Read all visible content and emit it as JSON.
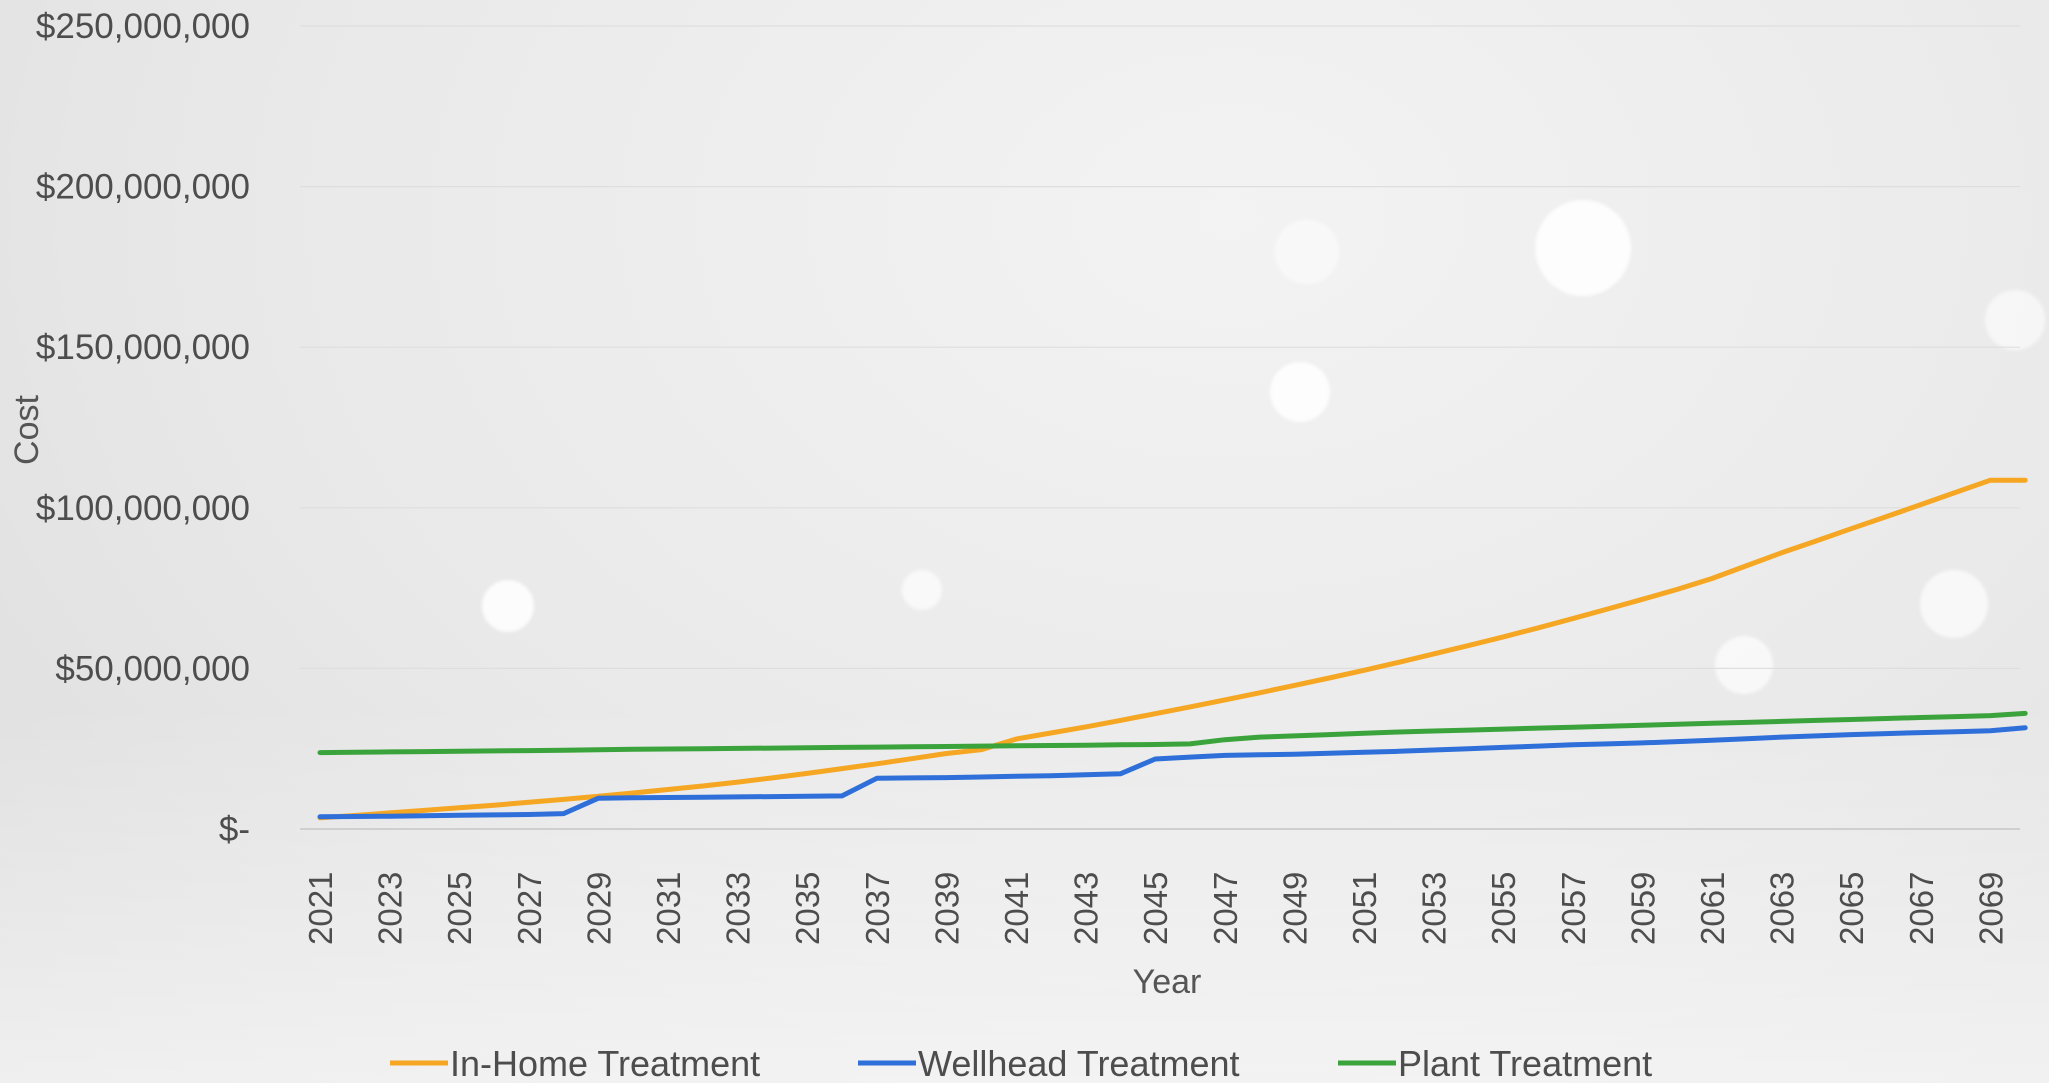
{
  "chart_data": {
    "type": "line",
    "title": "",
    "xlabel": "Year",
    "ylabel": "Cost",
    "ylim": [
      0,
      250000000
    ],
    "y_ticks": [
      0,
      50000000,
      100000000,
      150000000,
      200000000,
      250000000
    ],
    "y_tick_labels": [
      "$-",
      "$50,000,000",
      "$100,000,000",
      "$150,000,000",
      "$200,000,000",
      "$250,000,000"
    ],
    "x": [
      2021,
      2022,
      2023,
      2024,
      2025,
      2026,
      2027,
      2028,
      2029,
      2030,
      2031,
      2032,
      2033,
      2034,
      2035,
      2036,
      2037,
      2038,
      2039,
      2040,
      2041,
      2042,
      2043,
      2044,
      2045,
      2046,
      2047,
      2048,
      2049,
      2050,
      2051,
      2052,
      2053,
      2054,
      2055,
      2056,
      2057,
      2058,
      2059,
      2060,
      2061,
      2062,
      2063,
      2064,
      2065,
      2066,
      2067,
      2068,
      2069,
      2070
    ],
    "x_tick_labels": [
      "2021",
      "2023",
      "2025",
      "2027",
      "2029",
      "2031",
      "2033",
      "2035",
      "2037",
      "2039",
      "2041",
      "2043",
      "2045",
      "2047",
      "2049",
      "2051",
      "2053",
      "2055",
      "2057",
      "2059",
      "2061",
      "2063",
      "2065",
      "2067",
      "2069"
    ],
    "grid": true,
    "legend_position": "bottom",
    "series": [
      {
        "name": "In-Home Treatment",
        "color": "#F5A623",
        "values": [
          3500000,
          4200000,
          5000000,
          5800000,
          6600000,
          7400000,
          8300000,
          9200000,
          10200000,
          11200000,
          12300000,
          13400000,
          14600000,
          15900000,
          17300000,
          18800000,
          20300000,
          21900000,
          23500000,
          24700000,
          28000000,
          29900000,
          31800000,
          33800000,
          35900000,
          38000000,
          40200000,
          42400000,
          44700000,
          47000000,
          49400000,
          51900000,
          54500000,
          57100000,
          59800000,
          62600000,
          65500000,
          68500000,
          71500000,
          74600000,
          78000000,
          82000000,
          86000000,
          89700000,
          93500000,
          97200000,
          101000000,
          104800000,
          108600000,
          108600000
        ]
      },
      {
        "name": "Wellhead Treatment",
        "color": "#2E6FD9",
        "values": [
          3800000,
          3900000,
          4000000,
          4100000,
          4300000,
          4400000,
          4500000,
          4800000,
          9600000,
          9700000,
          9800000,
          9900000,
          10000000,
          10100000,
          10200000,
          10300000,
          15800000,
          15900000,
          16000000,
          16200000,
          16400000,
          16600000,
          16900000,
          17200000,
          21800000,
          22400000,
          22900000,
          23100000,
          23300000,
          23600000,
          23900000,
          24200000,
          24600000,
          25000000,
          25400000,
          25800000,
          26200000,
          26500000,
          26800000,
          27200000,
          27600000,
          28100000,
          28600000,
          29000000,
          29400000,
          29700000,
          30000000,
          30300000,
          30600000,
          31500000
        ]
      },
      {
        "name": "Plant Treatment",
        "color": "#3BA33B",
        "values": [
          23800000,
          23900000,
          24000000,
          24100000,
          24200000,
          24300000,
          24400000,
          24500000,
          24700000,
          24800000,
          24900000,
          25000000,
          25100000,
          25200000,
          25300000,
          25400000,
          25500000,
          25600000,
          25700000,
          25800000,
          25900000,
          26000000,
          26100000,
          26200000,
          26300000,
          26500000,
          27800000,
          28600000,
          29000000,
          29400000,
          29800000,
          30200000,
          30500000,
          30800000,
          31100000,
          31400000,
          31700000,
          32000000,
          32300000,
          32600000,
          32900000,
          33200000,
          33500000,
          33800000,
          34100000,
          34400000,
          34700000,
          35000000,
          35300000,
          36000000
        ]
      }
    ]
  }
}
